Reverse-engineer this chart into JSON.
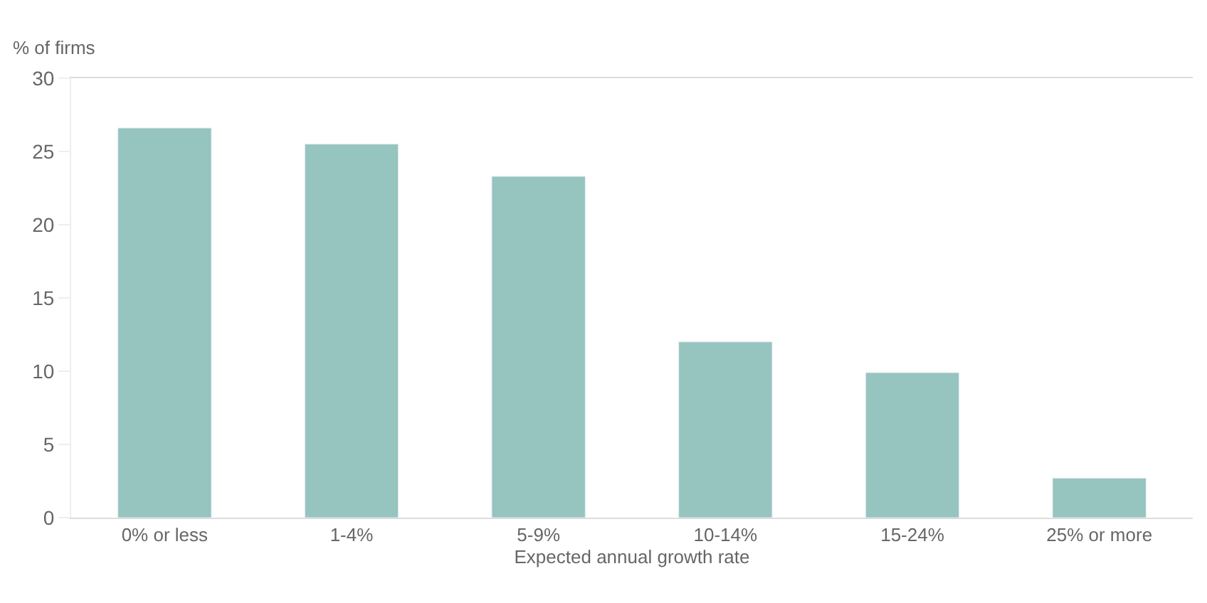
{
  "chart_data": {
    "type": "bar",
    "ylabel": "% of firms",
    "xlabel": "Expected annual growth rate",
    "categories": [
      "0% or less",
      "1-4%",
      "5-9%",
      "10-14%",
      "15-24%",
      "25% or more"
    ],
    "values": [
      26.6,
      25.5,
      23.3,
      12.0,
      9.9,
      2.7
    ],
    "color": "#96c4be",
    "ylim": [
      0,
      30
    ],
    "yticks": [
      0,
      5,
      10,
      15,
      20,
      25,
      30
    ]
  }
}
